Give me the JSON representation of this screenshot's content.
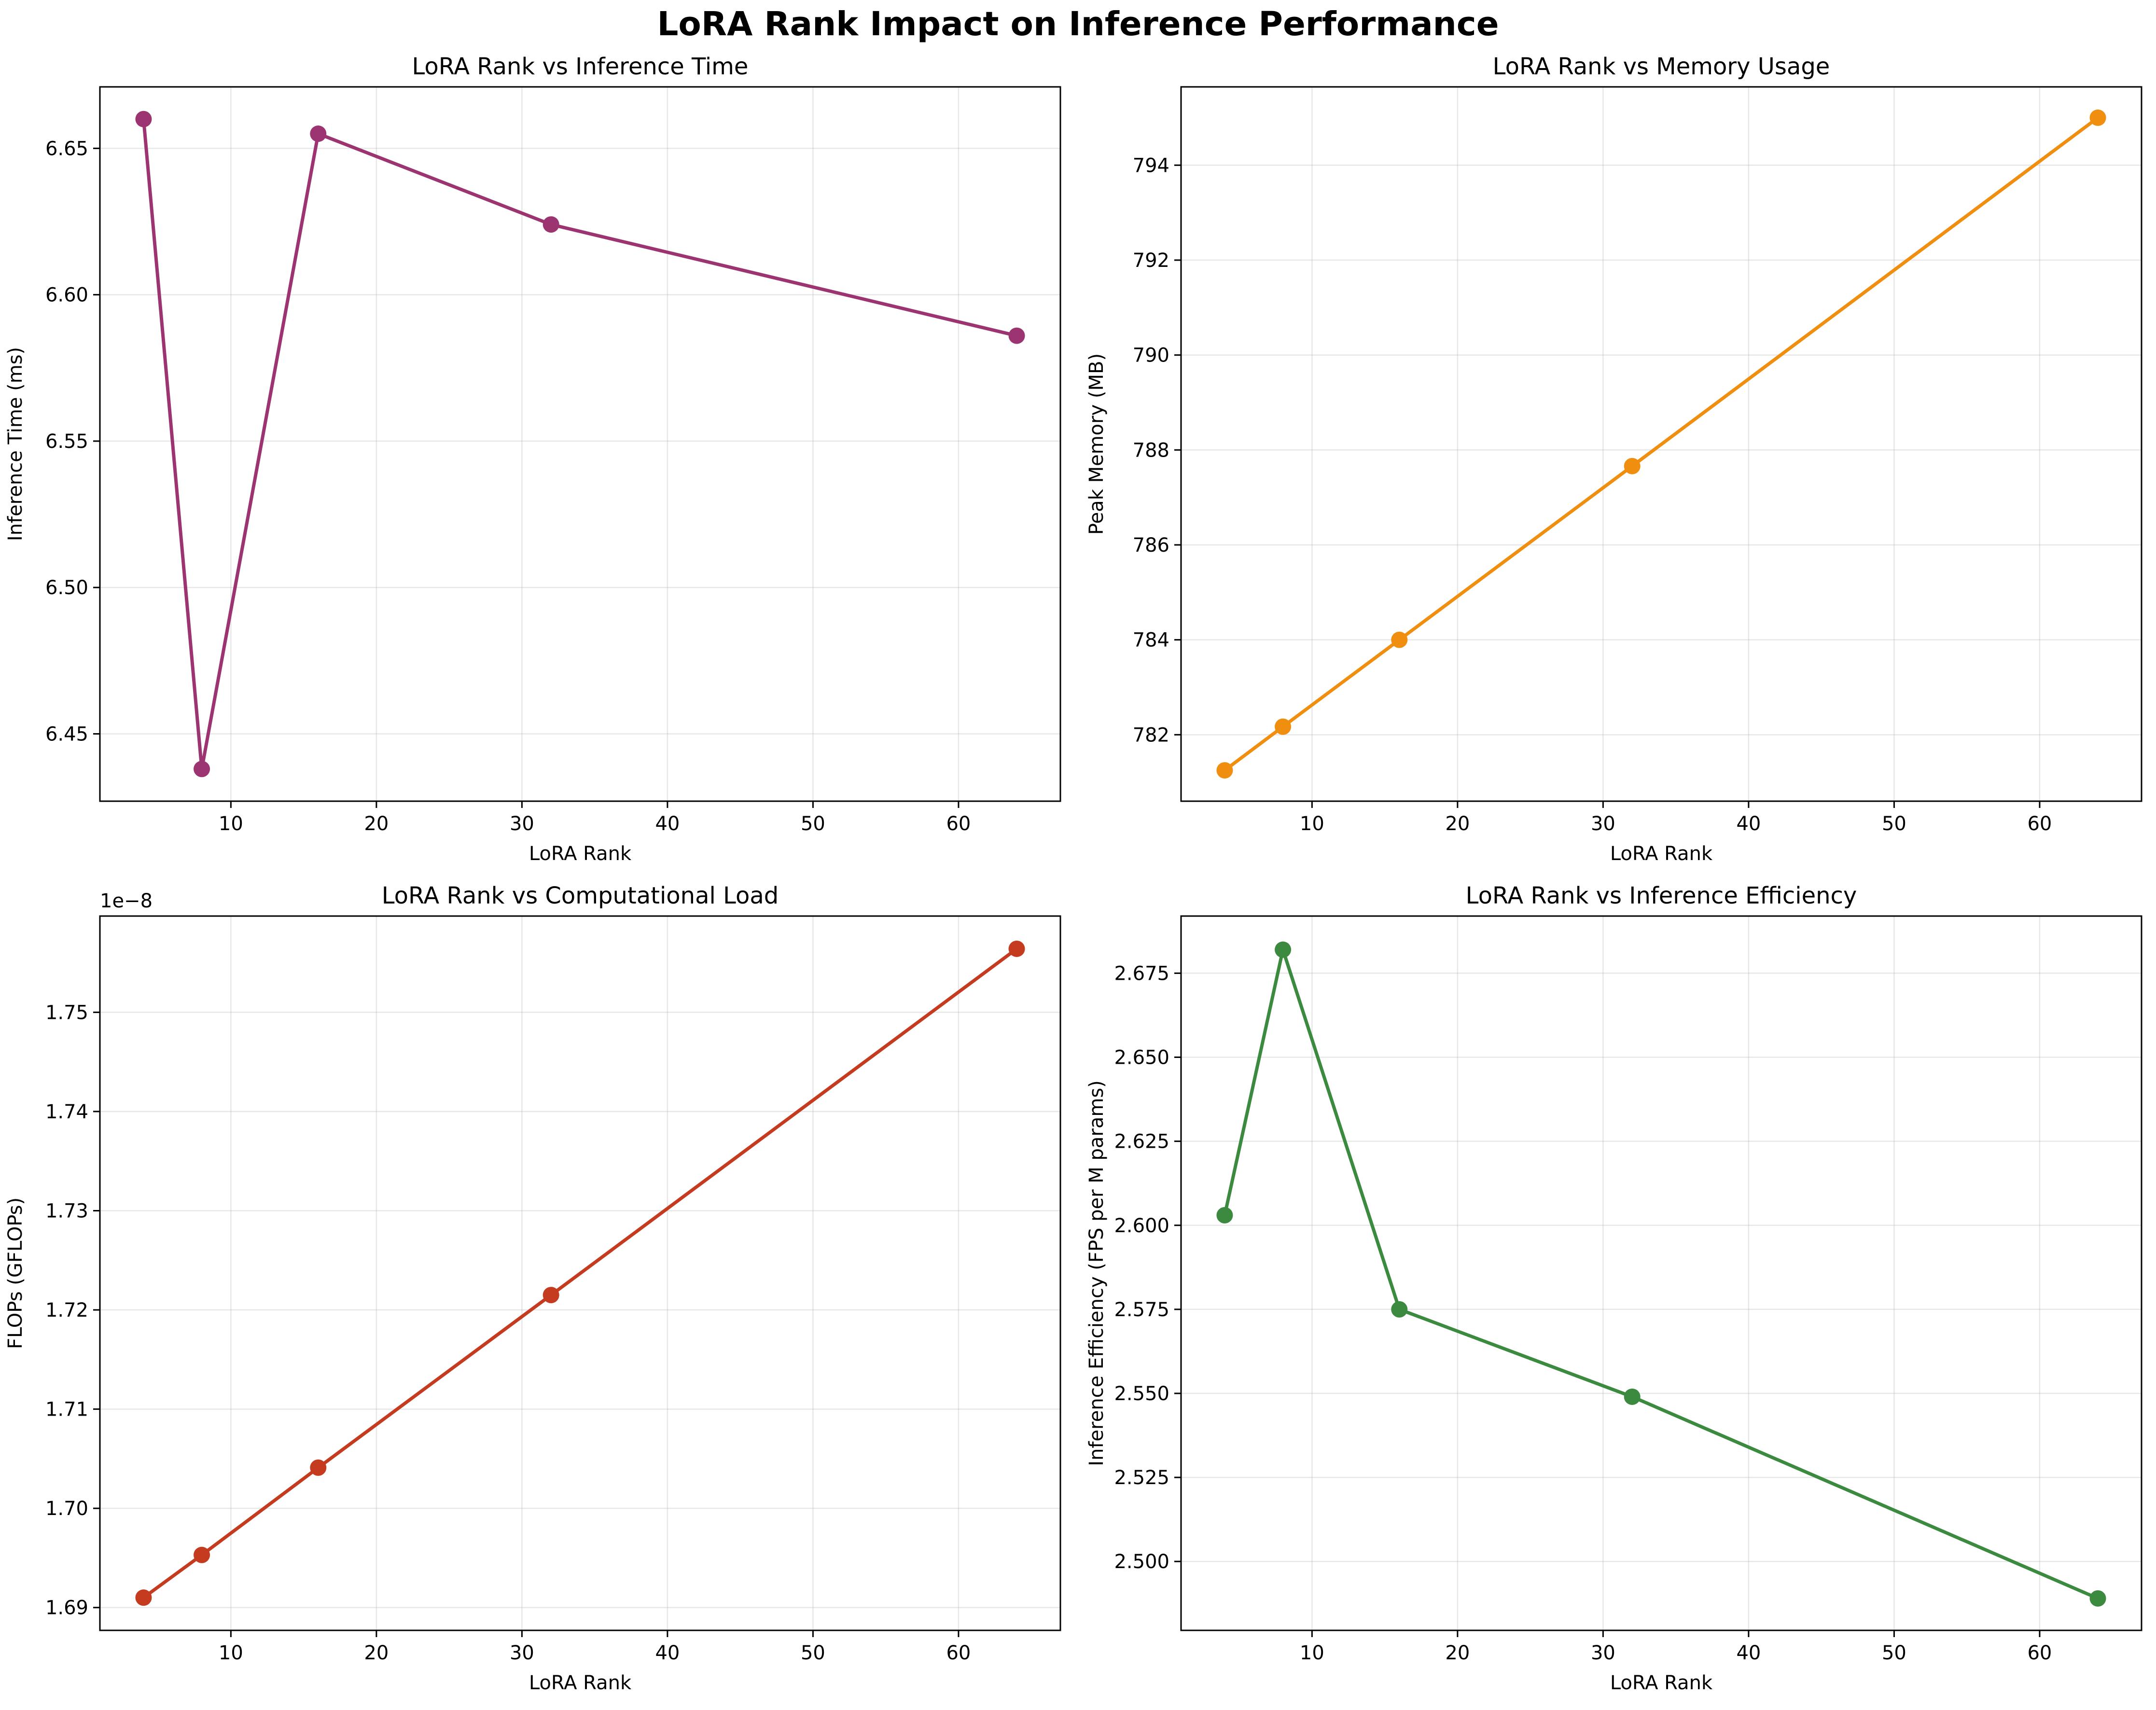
{
  "figure": {
    "title": "LoRA Rank Impact on Inference Performance"
  },
  "chart_data": [
    {
      "type": "line",
      "title": "LoRA Rank vs Inference Time",
      "xlabel": "LoRA Rank",
      "ylabel": "Inference Time (ms)",
      "x": [
        4,
        8,
        16,
        32,
        64
      ],
      "values": [
        6.66,
        6.438,
        6.655,
        6.624,
        6.586
      ],
      "color": "#9b3470",
      "xlim": [
        1.0,
        67.0
      ],
      "ylim": [
        6.427,
        6.671
      ],
      "xticks": [
        10,
        20,
        30,
        40,
        50,
        60
      ],
      "xtick_labels": [
        "10",
        "20",
        "30",
        "40",
        "50",
        "60"
      ],
      "yticks": [
        6.45,
        6.5,
        6.55,
        6.6,
        6.65
      ],
      "ytick_labels": [
        "6.45",
        "6.50",
        "6.55",
        "6.60",
        "6.65"
      ],
      "offset_label": "",
      "grid": true
    },
    {
      "type": "line",
      "title": "LoRA Rank vs Memory Usage",
      "xlabel": "LoRA Rank",
      "ylabel": "Peak Memory (MB)",
      "x": [
        4,
        8,
        16,
        32,
        64
      ],
      "values": [
        781.25,
        782.17,
        784.0,
        787.66,
        795.0
      ],
      "color": "#ef8e0f",
      "xlim": [
        1.0,
        67.0
      ],
      "ylim": [
        780.6,
        795.65
      ],
      "xticks": [
        10,
        20,
        30,
        40,
        50,
        60
      ],
      "xtick_labels": [
        "10",
        "20",
        "30",
        "40",
        "50",
        "60"
      ],
      "yticks": [
        782,
        784,
        786,
        788,
        790,
        792,
        794
      ],
      "ytick_labels": [
        "782",
        "784",
        "786",
        "788",
        "790",
        "792",
        "794"
      ],
      "offset_label": "",
      "grid": true
    },
    {
      "type": "line",
      "title": "LoRA Rank vs Computational Load",
      "xlabel": "LoRA Rank",
      "ylabel": "FLOPs (GFLOPs)",
      "x": [
        4,
        8,
        16,
        32,
        64
      ],
      "values": [
        1.691,
        1.6953,
        1.7041,
        1.7215,
        1.7564
      ],
      "color": "#c53b1f",
      "xlim": [
        1.0,
        67.0
      ],
      "ylim": [
        1.6877,
        1.7597
      ],
      "xticks": [
        10,
        20,
        30,
        40,
        50,
        60
      ],
      "xtick_labels": [
        "10",
        "20",
        "30",
        "40",
        "50",
        "60"
      ],
      "yticks": [
        1.69,
        1.7,
        1.71,
        1.72,
        1.73,
        1.74,
        1.75
      ],
      "ytick_labels": [
        "1.69",
        "1.70",
        "1.71",
        "1.72",
        "1.73",
        "1.74",
        "1.75"
      ],
      "offset_label": "1e−8",
      "grid": true
    },
    {
      "type": "line",
      "title": "LoRA Rank vs Inference Efficiency",
      "xlabel": "LoRA Rank",
      "ylabel": "Inference Efficiency (FPS per M params)",
      "x": [
        4,
        8,
        16,
        32,
        64
      ],
      "values": [
        2.603,
        2.682,
        2.575,
        2.549,
        2.489
      ],
      "color": "#3b8a3f",
      "xlim": [
        1.0,
        67.0
      ],
      "ylim": [
        2.4795,
        2.692
      ],
      "xticks": [
        10,
        20,
        30,
        40,
        50,
        60
      ],
      "xtick_labels": [
        "10",
        "20",
        "30",
        "40",
        "50",
        "60"
      ],
      "yticks": [
        2.5,
        2.525,
        2.55,
        2.575,
        2.6,
        2.625,
        2.65,
        2.675
      ],
      "ytick_labels": [
        "2.500",
        "2.525",
        "2.550",
        "2.575",
        "2.600",
        "2.625",
        "2.650",
        "2.675"
      ],
      "offset_label": "",
      "grid": true
    }
  ]
}
